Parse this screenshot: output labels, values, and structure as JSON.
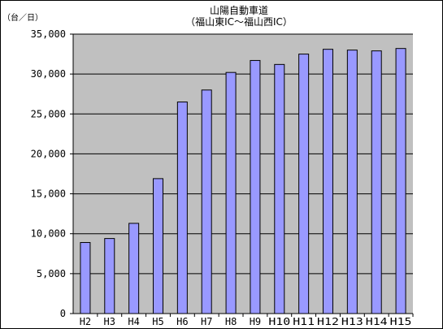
{
  "chart_data": {
    "type": "bar",
    "title": "山陽自動車道",
    "subtitle": "（福山東IC～福山西IC）",
    "ylabel": "（台／日）",
    "xlabel": "",
    "categories": [
      "H2",
      "H3",
      "H4",
      "H5",
      "H6",
      "H7",
      "H8",
      "H9",
      "H10",
      "H11",
      "H12",
      "H13",
      "H14",
      "H15"
    ],
    "category_labels": [
      "H2",
      "H3",
      "H4",
      "H5",
      "H6",
      "H7",
      "H8",
      "H9",
      "H10",
      "H11",
      "H12",
      "H13",
      "H14",
      "H15"
    ],
    "values": [
      8900,
      9400,
      11300,
      16900,
      26500,
      28000,
      30200,
      31700,
      31200,
      32500,
      33100,
      33000,
      32900,
      33200
    ],
    "ylim": [
      0,
      35000
    ],
    "yticks": [
      0,
      5000,
      10000,
      15000,
      20000,
      25000,
      30000,
      35000
    ],
    "ytick_labels": [
      "0",
      "5,000",
      "10,000",
      "15,000",
      "20,000",
      "25,000",
      "30,000",
      "35,000"
    ],
    "grid": true,
    "legend": "none",
    "colors": {
      "bar": "#9999ff",
      "bar_stroke": "#000000",
      "plot_bg": "#c0c0c0",
      "grid": "#000000"
    }
  }
}
